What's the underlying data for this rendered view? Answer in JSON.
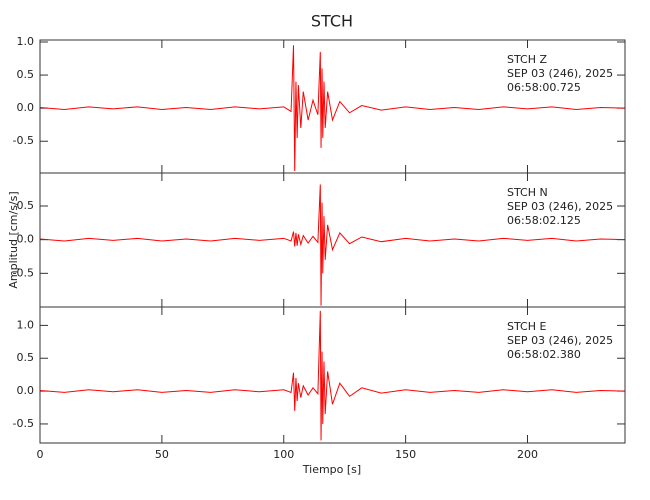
{
  "chart_data": {
    "type": "line",
    "title": "STCH",
    "xlabel": "Tiempo [s]",
    "ylabel": "Amplitud [cm/s/s]",
    "xlim": [
      0,
      240
    ],
    "xticks": [
      0,
      50,
      100,
      150,
      200
    ],
    "panels": [
      {
        "annotations": [
          "STCH   Z",
          "SEP 03 (246), 2025",
          "06:58:00.725"
        ],
        "color": "#ff0000",
        "ylim": [
          -0.98,
          1.03
        ],
        "yticks": [
          -0.5,
          {
            "value": 0,
            "label": "0.0"
          },
          0.5,
          {
            "value": 1,
            "label": "1.0"
          }
        ],
        "x": [
          0,
          10,
          20,
          30,
          40,
          50,
          60,
          70,
          80,
          90,
          100,
          103,
          104,
          104.5,
          105,
          105.5,
          106,
          107,
          108,
          110,
          112,
          114,
          115,
          115.3,
          115.7,
          116,
          116.5,
          117,
          118,
          120,
          123,
          127,
          132,
          140,
          150,
          160,
          170,
          180,
          190,
          200,
          210,
          220,
          230,
          240
        ],
        "values": [
          0.01,
          -0.02,
          0.02,
          -0.01,
          0.02,
          -0.02,
          0.01,
          -0.02,
          0.02,
          -0.01,
          0.02,
          -0.05,
          0.95,
          -0.95,
          0.4,
          -0.45,
          0.35,
          -0.3,
          0.25,
          -0.18,
          0.12,
          -0.1,
          0.85,
          -0.6,
          0.6,
          -0.45,
          0.4,
          -0.3,
          0.25,
          -0.18,
          0.1,
          -0.07,
          0.04,
          -0.03,
          0.02,
          -0.02,
          0.01,
          -0.02,
          0.02,
          -0.01,
          0.02,
          -0.02,
          0.01,
          0
        ]
      },
      {
        "annotations": [
          "STCH   N",
          "SEP 03 (246), 2025",
          "06:58:02.125"
        ],
        "color": "#ff0000",
        "ylim": [
          -1.0,
          0.99
        ],
        "yticks": [
          -0.5,
          {
            "value": 0,
            "label": "0.0"
          },
          0.5
        ],
        "x": [
          0,
          10,
          20,
          30,
          40,
          50,
          60,
          70,
          80,
          90,
          100,
          103,
          104,
          104.5,
          105,
          105.5,
          106,
          107,
          108,
          110,
          112,
          114,
          115,
          115.3,
          115.7,
          116,
          116.5,
          117,
          118,
          120,
          123,
          127,
          132,
          140,
          150,
          160,
          170,
          180,
          190,
          200,
          210,
          220,
          230,
          240
        ],
        "values": [
          0.01,
          -0.02,
          0.02,
          -0.01,
          0.02,
          -0.02,
          0.01,
          -0.02,
          0.02,
          -0.01,
          0.02,
          -0.02,
          0.12,
          -0.1,
          0.1,
          -0.09,
          0.08,
          -0.07,
          0.06,
          -0.05,
          0.05,
          -0.04,
          0.82,
          -0.98,
          0.55,
          -0.5,
          0.35,
          -0.3,
          0.22,
          -0.15,
          0.1,
          -0.06,
          0.04,
          -0.03,
          0.02,
          -0.02,
          0.01,
          -0.02,
          0.02,
          -0.01,
          0.02,
          -0.02,
          0.01,
          0
        ]
      },
      {
        "annotations": [
          "STCH   E",
          "SEP 03 (246), 2025",
          "06:58:02.380"
        ],
        "color": "#ff0000",
        "ylim": [
          -0.79,
          1.28
        ],
        "yticks": [
          -0.5,
          {
            "value": 0,
            "label": "0.0"
          },
          0.5,
          {
            "value": 1,
            "label": "1.0"
          }
        ],
        "x": [
          0,
          10,
          20,
          30,
          40,
          50,
          60,
          70,
          80,
          90,
          100,
          103,
          104,
          104.5,
          105,
          105.5,
          106,
          107,
          108,
          110,
          112,
          114,
          115,
          115.3,
          115.7,
          116,
          116.5,
          117,
          118,
          120,
          123,
          127,
          132,
          140,
          150,
          160,
          170,
          180,
          190,
          200,
          210,
          220,
          230,
          240
        ],
        "values": [
          0.01,
          -0.02,
          0.02,
          -0.01,
          0.02,
          -0.02,
          0.01,
          -0.02,
          0.02,
          -0.01,
          0.02,
          -0.02,
          0.28,
          -0.3,
          0.2,
          -0.15,
          0.12,
          -0.1,
          0.08,
          -0.06,
          0.05,
          -0.04,
          1.22,
          -0.75,
          0.6,
          -0.5,
          0.45,
          -0.35,
          0.3,
          -0.2,
          0.12,
          -0.08,
          0.05,
          -0.03,
          0.02,
          -0.02,
          0.01,
          -0.02,
          0.02,
          -0.01,
          0.02,
          -0.02,
          0.01,
          0
        ]
      }
    ]
  }
}
